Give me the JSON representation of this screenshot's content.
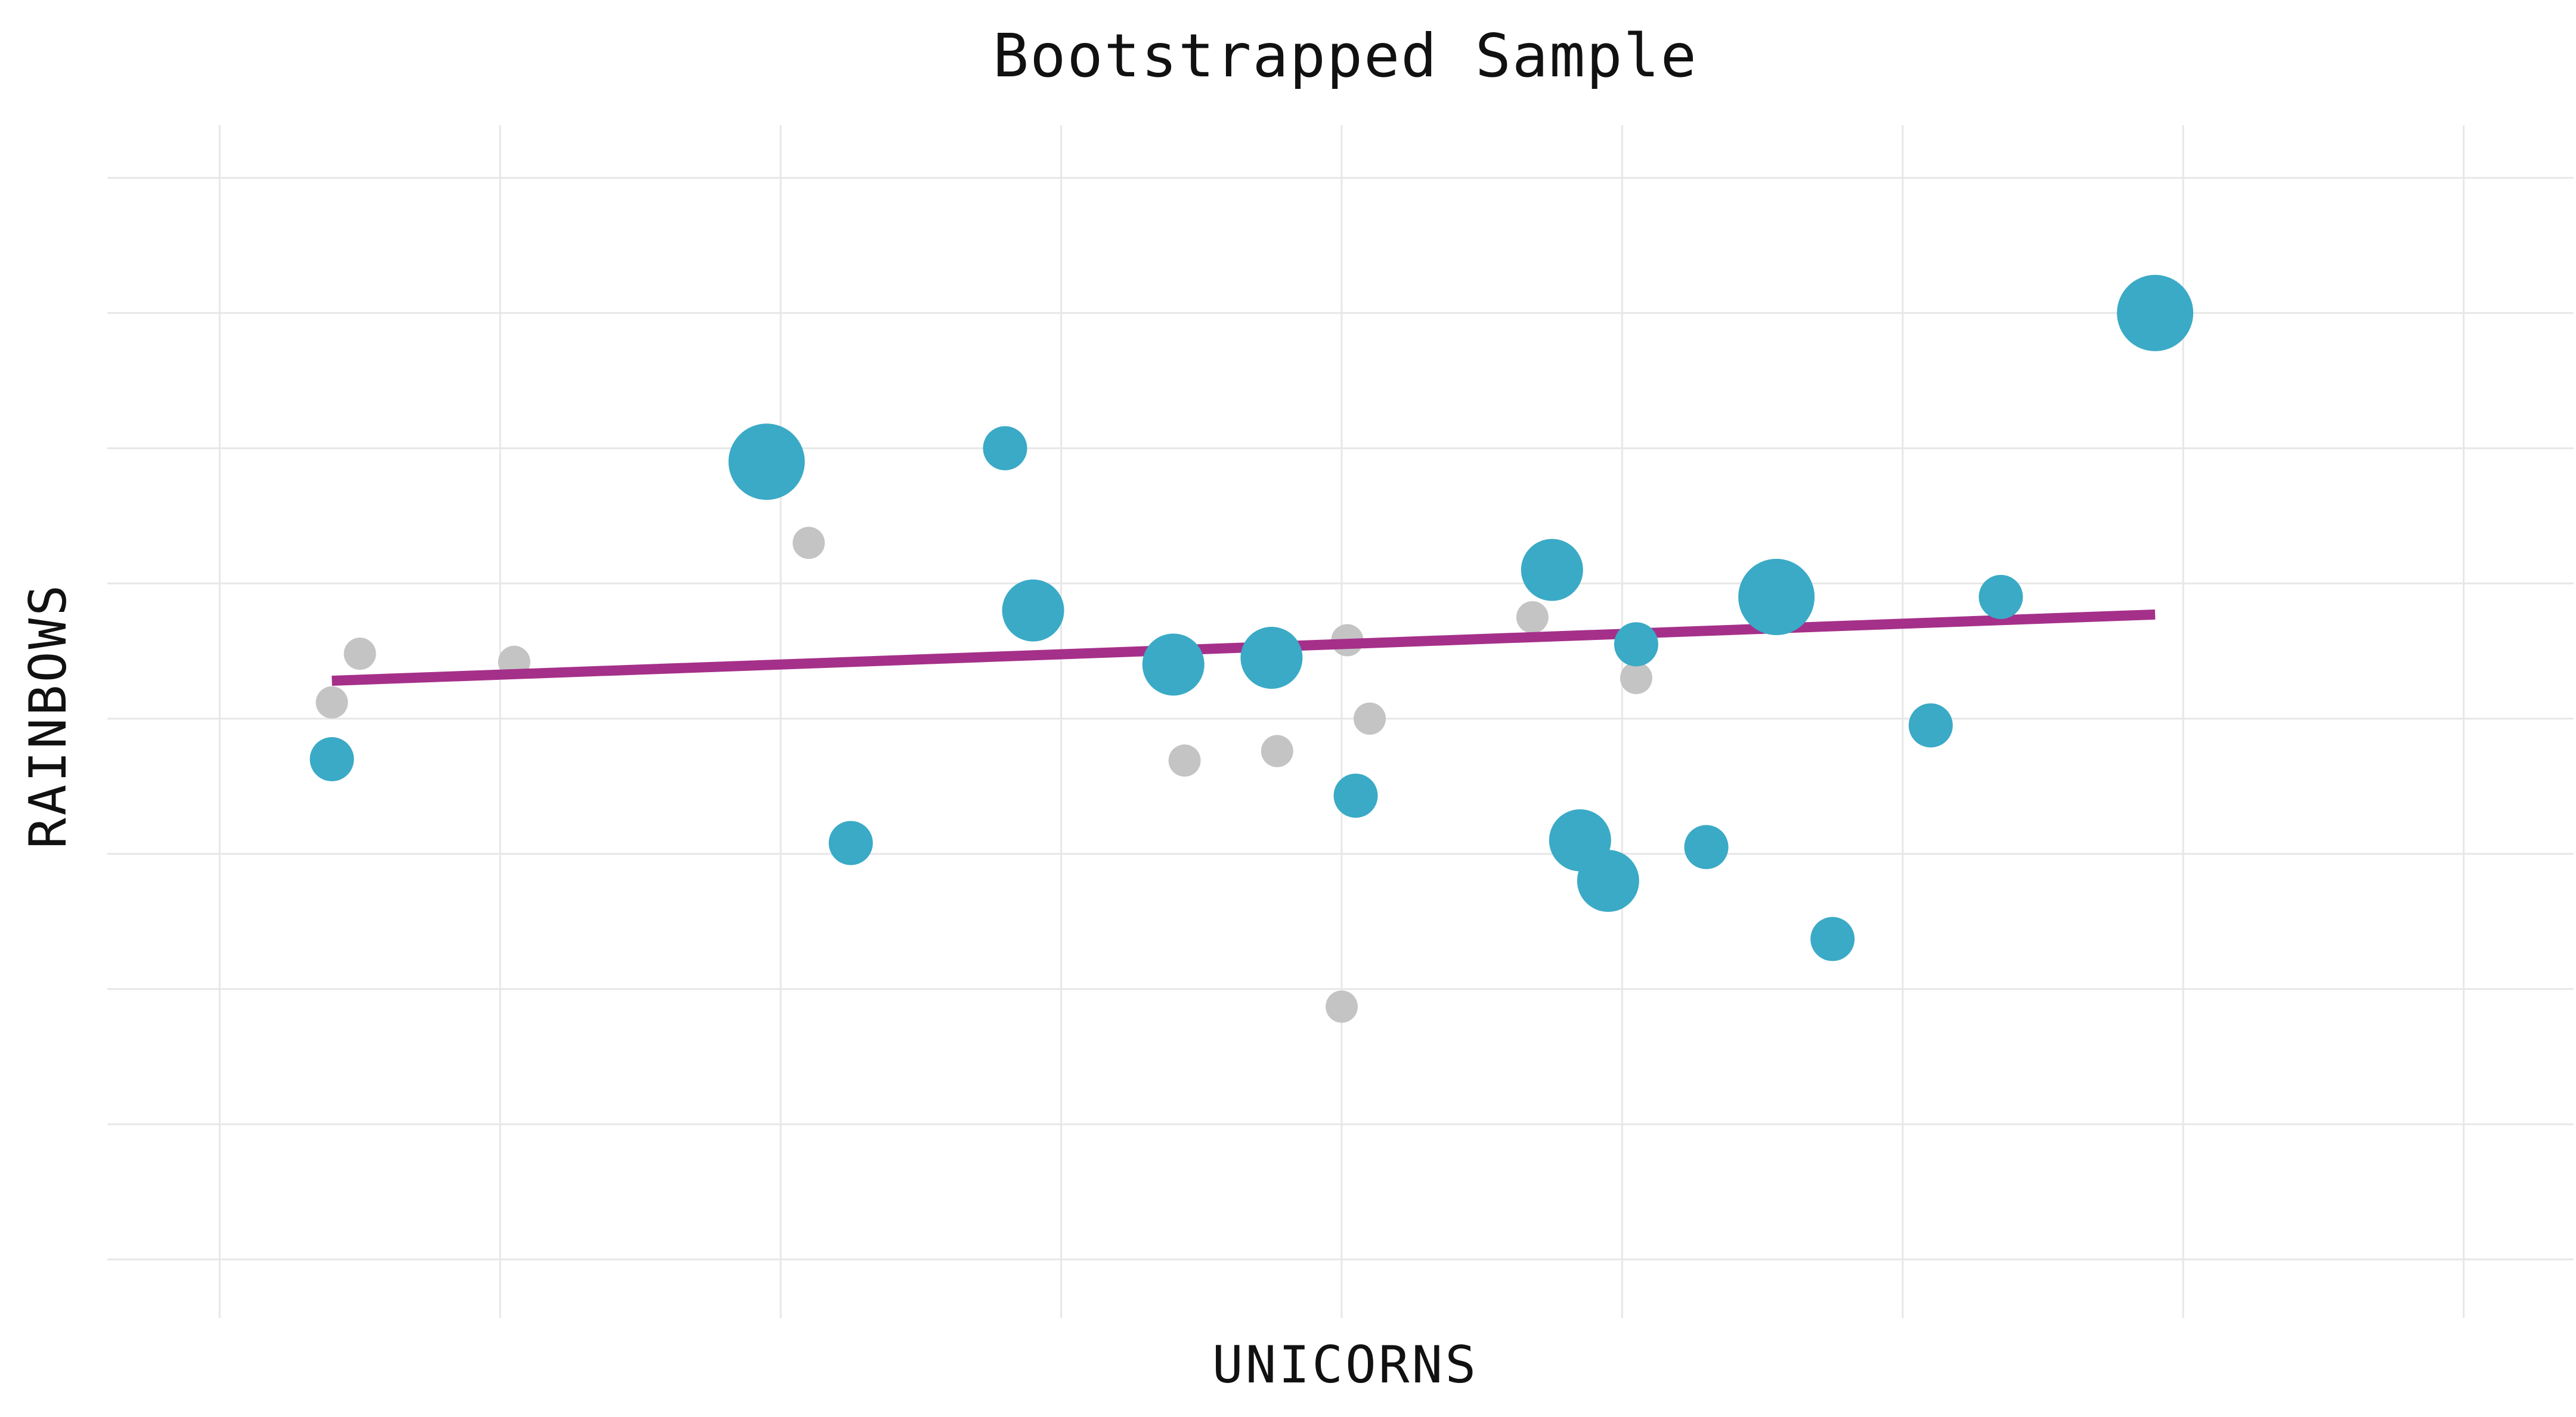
{
  "chart_data": {
    "type": "scatter",
    "title": "Bootstrapped Sample",
    "xlabel": "UNICORNS",
    "ylabel": "RAINBOWS",
    "xlim": [
      -4,
      4
    ],
    "ylim": [
      -4.2,
      4.2
    ],
    "grid": true,
    "tick_labels_visible": false,
    "colors": {
      "sampled": "#3aaac6",
      "unsampled": "#c4c4c4",
      "fit_line": "#a5308a"
    },
    "series": [
      {
        "role": "sampled",
        "points": [
          {
            "x": 2.9,
            "y": 3.0,
            "weight": 2
          },
          {
            "x": -2.05,
            "y": 1.9,
            "weight": 2
          },
          {
            "x": 1.55,
            "y": 0.9,
            "weight": 2
          },
          {
            "x": -1.1,
            "y": 0.8,
            "weight": 1
          },
          {
            "x": -0.25,
            "y": 0.45,
            "weight": 1
          },
          {
            "x": -0.6,
            "y": 0.4,
            "weight": 1
          },
          {
            "x": 0.75,
            "y": 1.1,
            "weight": 1
          },
          {
            "x": 0.85,
            "y": -0.9,
            "weight": 1
          },
          {
            "x": 0.95,
            "y": -1.2,
            "weight": 1
          },
          {
            "x": -1.2,
            "y": 2.0,
            "weight": 0
          },
          {
            "x": 2.35,
            "y": 0.9,
            "weight": 0
          },
          {
            "x": 1.05,
            "y": 0.55,
            "weight": 0
          },
          {
            "x": 2.1,
            "y": -0.05,
            "weight": 0
          },
          {
            "x": -3.6,
            "y": -0.3,
            "weight": 0
          },
          {
            "x": -1.75,
            "y": -0.92,
            "weight": 0
          },
          {
            "x": 0.05,
            "y": -0.57,
            "weight": 0
          },
          {
            "x": 1.3,
            "y": -0.95,
            "weight": 0
          },
          {
            "x": 1.75,
            "y": -1.63,
            "weight": 0
          }
        ]
      },
      {
        "role": "unsampled",
        "points": [
          {
            "x": -3.5,
            "y": 0.48
          },
          {
            "x": -3.6,
            "y": 0.12
          },
          {
            "x": -2.95,
            "y": 0.42
          },
          {
            "x": -1.9,
            "y": 1.3
          },
          {
            "x": 0.02,
            "y": 0.58
          },
          {
            "x": 0.68,
            "y": 0.75
          },
          {
            "x": 1.05,
            "y": 0.3
          },
          {
            "x": 0.1,
            "y": 0.0
          },
          {
            "x": -0.23,
            "y": -0.24
          },
          {
            "x": -0.56,
            "y": -0.31
          },
          {
            "x": 0.0,
            "y": -2.13
          }
        ]
      }
    ],
    "fit_line": {
      "x": [
        -3.6,
        2.9
      ],
      "y": [
        0.28,
        0.77
      ]
    }
  }
}
